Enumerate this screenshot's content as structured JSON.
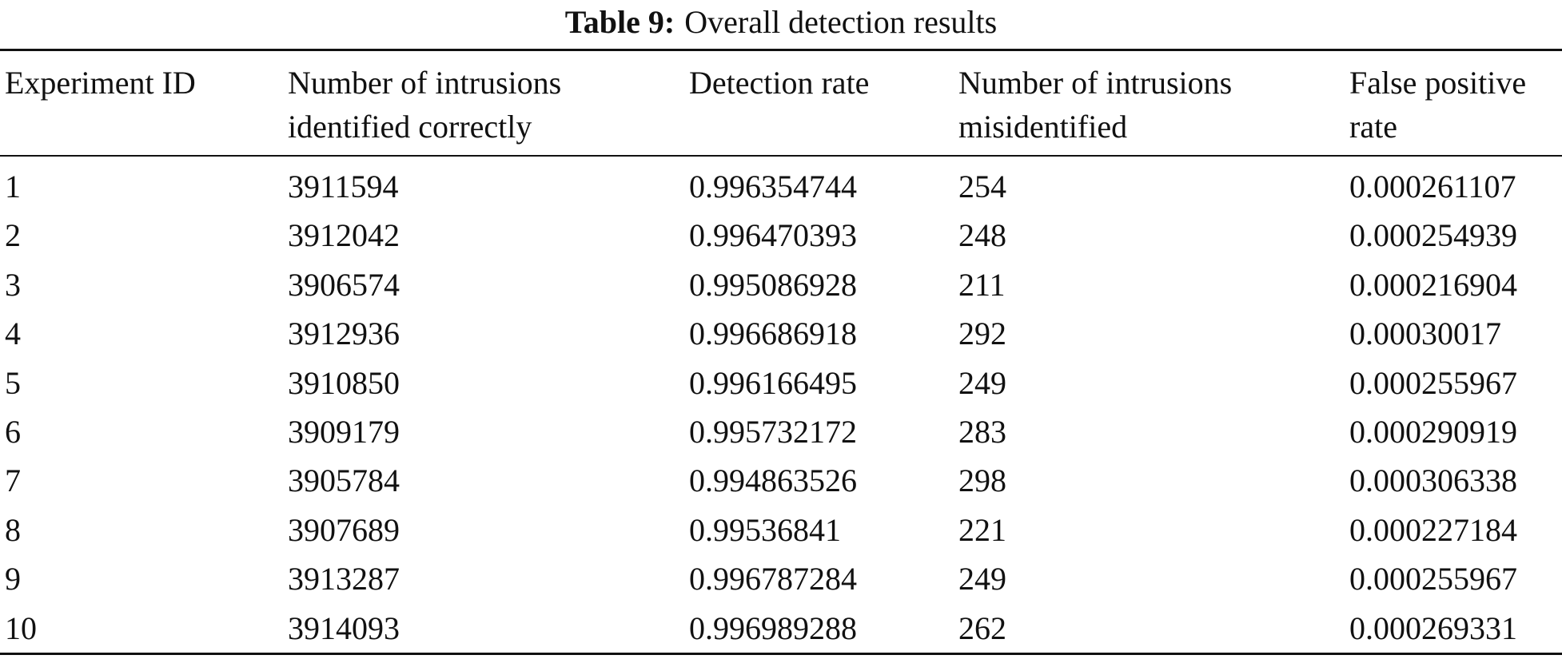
{
  "caption": {
    "label": "Table 9:",
    "title": "Overall detection results"
  },
  "table": {
    "header": [
      [
        "Experiment ID"
      ],
      [
        "Number of intrusions",
        "identified correctly"
      ],
      [
        "Detection rate"
      ],
      [
        "Number of intrusions",
        "misidentified"
      ],
      [
        "False positive",
        "rate"
      ]
    ],
    "rows": [
      [
        1,
        3911594,
        0.996354744,
        254,
        0.000261107
      ],
      [
        2,
        3912042,
        0.996470393,
        248,
        0.000254939
      ],
      [
        3,
        3906574,
        0.995086928,
        211,
        0.000216904
      ],
      [
        4,
        3912936,
        0.996686918,
        292,
        0.00030017
      ],
      [
        5,
        3910850,
        0.996166495,
        249,
        0.000255967
      ],
      [
        6,
        3909179,
        0.995732172,
        283,
        0.000290919
      ],
      [
        7,
        3905784,
        0.994863526,
        298,
        0.000306338
      ],
      [
        8,
        3907689,
        0.99536841,
        221,
        0.000227184
      ],
      [
        9,
        3913287,
        0.996787284,
        249,
        0.000255967
      ],
      [
        10,
        3914093,
        0.996989288,
        262,
        0.000269331
      ]
    ]
  }
}
